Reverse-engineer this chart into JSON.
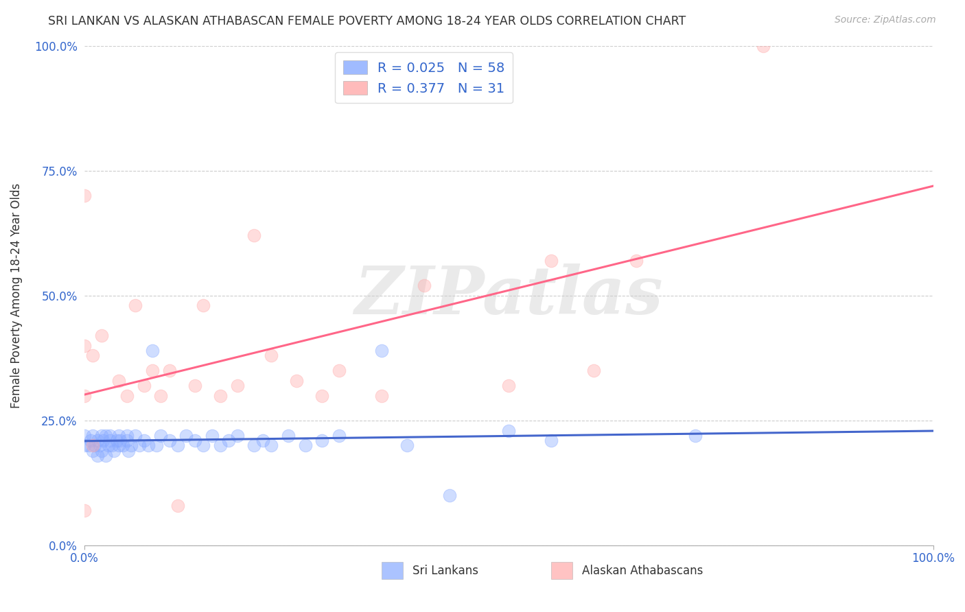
{
  "title": "SRI LANKAN VS ALASKAN ATHABASCAN FEMALE POVERTY AMONG 18-24 YEAR OLDS CORRELATION CHART",
  "source": "Source: ZipAtlas.com",
  "ylabel": "Female Poverty Among 18-24 Year Olds",
  "xlim": [
    0,
    1.0
  ],
  "ylim": [
    -0.05,
    1.05
  ],
  "plot_ylim": [
    0.0,
    1.0
  ],
  "xtick_vals": [
    0.0,
    1.0
  ],
  "xtick_labels": [
    "0.0%",
    "100.0%"
  ],
  "ytick_vals": [
    0.0,
    0.25,
    0.5,
    0.75,
    1.0
  ],
  "ytick_labels": [
    "0.0%",
    "25.0%",
    "50.0%",
    "75.0%",
    "100.0%"
  ],
  "sri_color": "#88aaff",
  "sri_line_color": "#4466cc",
  "ak_color": "#ffaaaa",
  "ak_line_color": "#ff6688",
  "R_sri": 0.025,
  "N_sri": 58,
  "R_ak": 0.377,
  "N_ak": 31,
  "watermark": "ZIPatlas",
  "legend_label1": "Sri Lankans",
  "legend_label2": "Alaskan Athabascans",
  "sri_x": [
    0.0,
    0.0,
    0.005,
    0.007,
    0.01,
    0.01,
    0.012,
    0.015,
    0.015,
    0.018,
    0.02,
    0.02,
    0.022,
    0.025,
    0.025,
    0.028,
    0.03,
    0.03,
    0.032,
    0.035,
    0.038,
    0.04,
    0.04,
    0.042,
    0.045,
    0.05,
    0.05,
    0.052,
    0.055,
    0.06,
    0.065,
    0.07,
    0.075,
    0.08,
    0.085,
    0.09,
    0.1,
    0.11,
    0.12,
    0.13,
    0.14,
    0.15,
    0.16,
    0.17,
    0.18,
    0.2,
    0.21,
    0.22,
    0.24,
    0.26,
    0.28,
    0.3,
    0.35,
    0.38,
    0.43,
    0.5,
    0.55,
    0.72
  ],
  "sri_y": [
    0.2,
    0.22,
    0.2,
    0.21,
    0.19,
    0.22,
    0.2,
    0.21,
    0.18,
    0.2,
    0.22,
    0.19,
    0.21,
    0.18,
    0.22,
    0.2,
    0.21,
    0.22,
    0.2,
    0.19,
    0.21,
    0.2,
    0.22,
    0.21,
    0.2,
    0.21,
    0.22,
    0.19,
    0.2,
    0.22,
    0.2,
    0.21,
    0.2,
    0.39,
    0.2,
    0.22,
    0.21,
    0.2,
    0.22,
    0.21,
    0.2,
    0.22,
    0.2,
    0.21,
    0.22,
    0.2,
    0.21,
    0.2,
    0.22,
    0.2,
    0.21,
    0.22,
    0.39,
    0.2,
    0.1,
    0.23,
    0.21,
    0.22
  ],
  "ak_x": [
    0.0,
    0.0,
    0.0,
    0.0,
    0.01,
    0.01,
    0.02,
    0.04,
    0.05,
    0.06,
    0.07,
    0.08,
    0.09,
    0.1,
    0.11,
    0.13,
    0.14,
    0.16,
    0.18,
    0.2,
    0.22,
    0.25,
    0.28,
    0.3,
    0.35,
    0.4,
    0.5,
    0.55,
    0.6,
    0.65,
    0.8
  ],
  "ak_y": [
    0.7,
    0.4,
    0.3,
    0.07,
    0.38,
    0.2,
    0.42,
    0.33,
    0.3,
    0.48,
    0.32,
    0.35,
    0.3,
    0.35,
    0.08,
    0.32,
    0.48,
    0.3,
    0.32,
    0.62,
    0.38,
    0.33,
    0.3,
    0.35,
    0.3,
    0.52,
    0.32,
    0.57,
    0.35,
    0.57,
    1.0
  ]
}
